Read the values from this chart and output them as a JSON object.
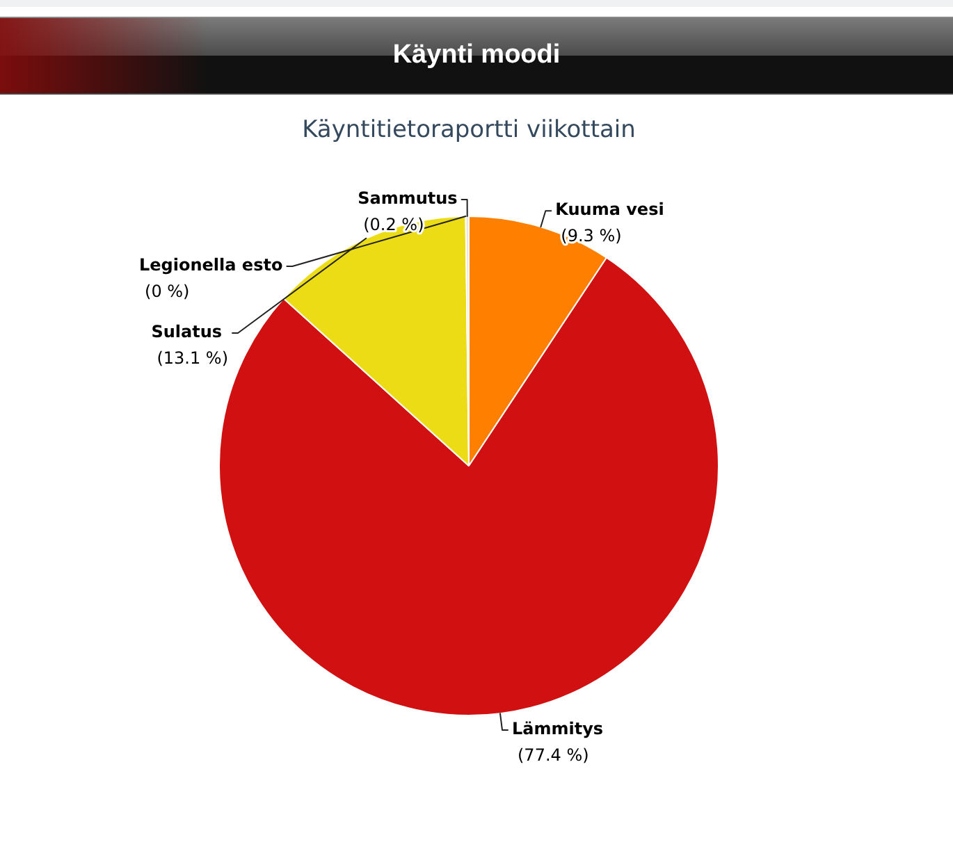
{
  "chart_data": {
    "type": "pie",
    "title": "Käynti moodi",
    "subtitle": "Käyntitietoraportti viikottain",
    "categories": [
      "Kuuma vesi",
      "Lämmitys",
      "Sulatus",
      "Legionella esto",
      "Sammutus"
    ],
    "values": [
      9.3,
      77.4,
      13.1,
      0,
      0.2
    ],
    "colors": [
      "#ff8000",
      "#d11111",
      "#ebdc15",
      "#4572a7",
      "#e6e6e6"
    ],
    "value_labels": [
      "(9.3 %)",
      "(77.4 %)",
      "(13.1 %)",
      "(0 %)",
      "(0.2 %)"
    ]
  }
}
